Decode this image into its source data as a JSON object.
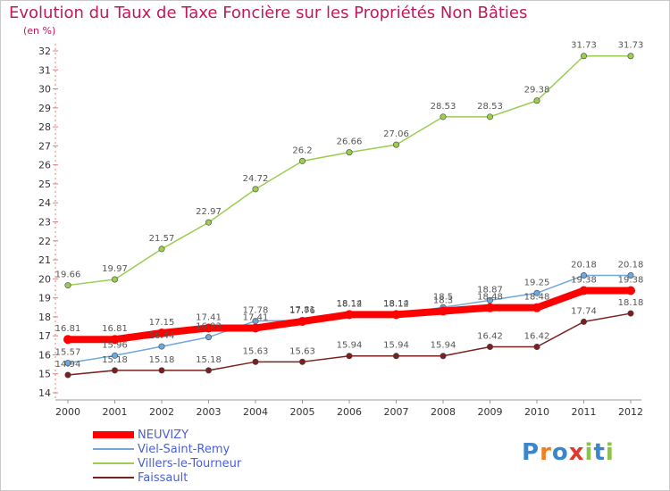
{
  "header": {
    "title": "Evolution du Taux de Taxe Foncière sur les Propriétés Non Bâties",
    "subtitle": "(en %)"
  },
  "logo": {
    "text": "Proxiti",
    "letters": [
      "P",
      "r",
      "o",
      "x",
      "i",
      "t",
      "i"
    ],
    "colors": [
      "#3a86c8",
      "#f07f1e",
      "#3a86c8",
      "#e03a2f",
      "#8bc34a",
      "#3a86c8",
      "#8bc34a"
    ]
  },
  "chart_data": {
    "type": "line",
    "x": [
      "2000",
      "2001",
      "2002",
      "2003",
      "2004",
      "2005",
      "2006",
      "2007",
      "2008",
      "2009",
      "2010",
      "2011",
      "2012"
    ],
    "ylim": [
      14,
      32
    ],
    "yticks": [
      14,
      15,
      16,
      17,
      18,
      19,
      20,
      21,
      22,
      23,
      24,
      25,
      26,
      27,
      28,
      29,
      30,
      31,
      32
    ],
    "grid": false,
    "legend_position": "bottom-left",
    "series": [
      {
        "name": "NEUVIZY",
        "color": "#ff0000",
        "values": [
          16.81,
          16.81,
          17.15,
          17.41,
          17.41,
          17.76,
          18.12,
          18.12,
          18.3,
          18.48,
          18.48,
          19.38,
          19.38
        ],
        "labels": [
          "16.81",
          "16.81",
          "17.15",
          "17.41",
          "17.41",
          "17.76",
          "18.12",
          "18.12",
          "18.3",
          "18.48",
          "18.48",
          "19.38",
          "19.38"
        ]
      },
      {
        "name": "Viel-Saint-Remy",
        "color": "#6fa8dc",
        "values": [
          15.57,
          15.96,
          16.44,
          16.93,
          17.78,
          17.81,
          18.14,
          18.14,
          18.5,
          18.87,
          19.25,
          20.18,
          20.18
        ],
        "labels": [
          "15.57",
          "15.96",
          "16.44",
          "16.93",
          "17.78",
          "17.81",
          "18.14",
          "18.14",
          "18.5",
          "18.87",
          "19.25",
          "20.18",
          "20.18"
        ]
      },
      {
        "name": "Villers-le-Tourneur",
        "color": "#9acd50",
        "values": [
          19.66,
          19.97,
          21.57,
          22.97,
          24.72,
          26.2,
          26.66,
          27.06,
          28.53,
          28.53,
          29.38,
          31.73,
          31.73
        ],
        "labels": [
          "19.66",
          "19.97",
          "21.57",
          "22.97",
          "24.72",
          "26.2",
          "26.66",
          "27.06",
          "28.53",
          "28.53",
          "29.38",
          "31.73",
          "31.73"
        ]
      },
      {
        "name": "Faissault",
        "color": "#7b2020",
        "values": [
          14.94,
          15.18,
          15.18,
          15.18,
          15.63,
          15.63,
          15.94,
          15.94,
          15.94,
          16.42,
          16.42,
          17.74,
          18.18
        ],
        "labels": [
          "14.94",
          "15.18",
          "15.18",
          "15.18",
          "15.63",
          "15.63",
          "15.94",
          "15.94",
          "15.94",
          "16.42",
          "16.42",
          "17.74",
          "18.18"
        ]
      }
    ]
  }
}
